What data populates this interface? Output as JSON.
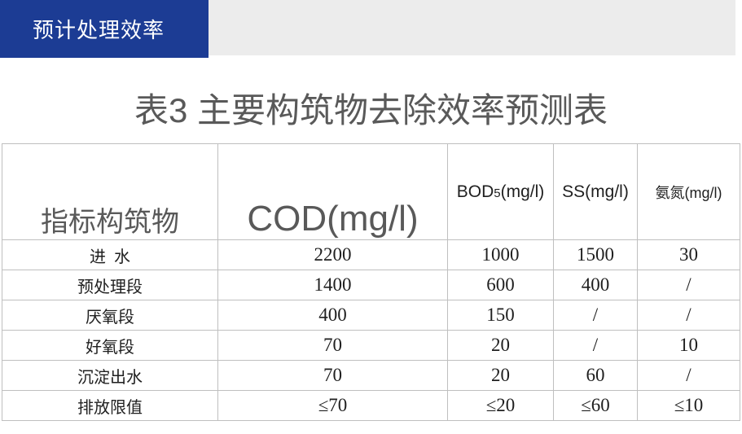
{
  "header": {
    "tab_label": "预计处理效率"
  },
  "title": "表3 主要构筑物去除效率预测表",
  "colors": {
    "accent_blue": "#1c3c94",
    "band_gray": "#ececec",
    "title_gray": "#595959",
    "table_border": "#bfbfbf",
    "body_text": "#1f1f1f"
  },
  "table": {
    "columns": [
      {
        "label": "指标构筑物"
      },
      {
        "label": "COD(mg/l)"
      },
      {
        "label_prefix": "BOD",
        "label_sub": "5",
        "label_suffix": "(mg/l)"
      },
      {
        "label": "SS(mg/l)"
      },
      {
        "label": "氨氮(mg/l)"
      }
    ],
    "rows": [
      {
        "name": "进 水",
        "values": [
          "2200",
          "1000",
          "1500",
          "30"
        ]
      },
      {
        "name": "预处理段",
        "values": [
          "1400",
          "600",
          "400",
          "/"
        ]
      },
      {
        "name": "厌氧段",
        "values": [
          "400",
          "150",
          "/",
          "/"
        ]
      },
      {
        "name": "好氧段",
        "values": [
          "70",
          "20",
          "/",
          "10"
        ]
      },
      {
        "name": "沉淀出水",
        "values": [
          "70",
          "20",
          "60",
          "/"
        ]
      },
      {
        "name": "排放限值",
        "values": [
          "≤70",
          "≤20",
          "≤60",
          "≤10"
        ]
      }
    ]
  }
}
